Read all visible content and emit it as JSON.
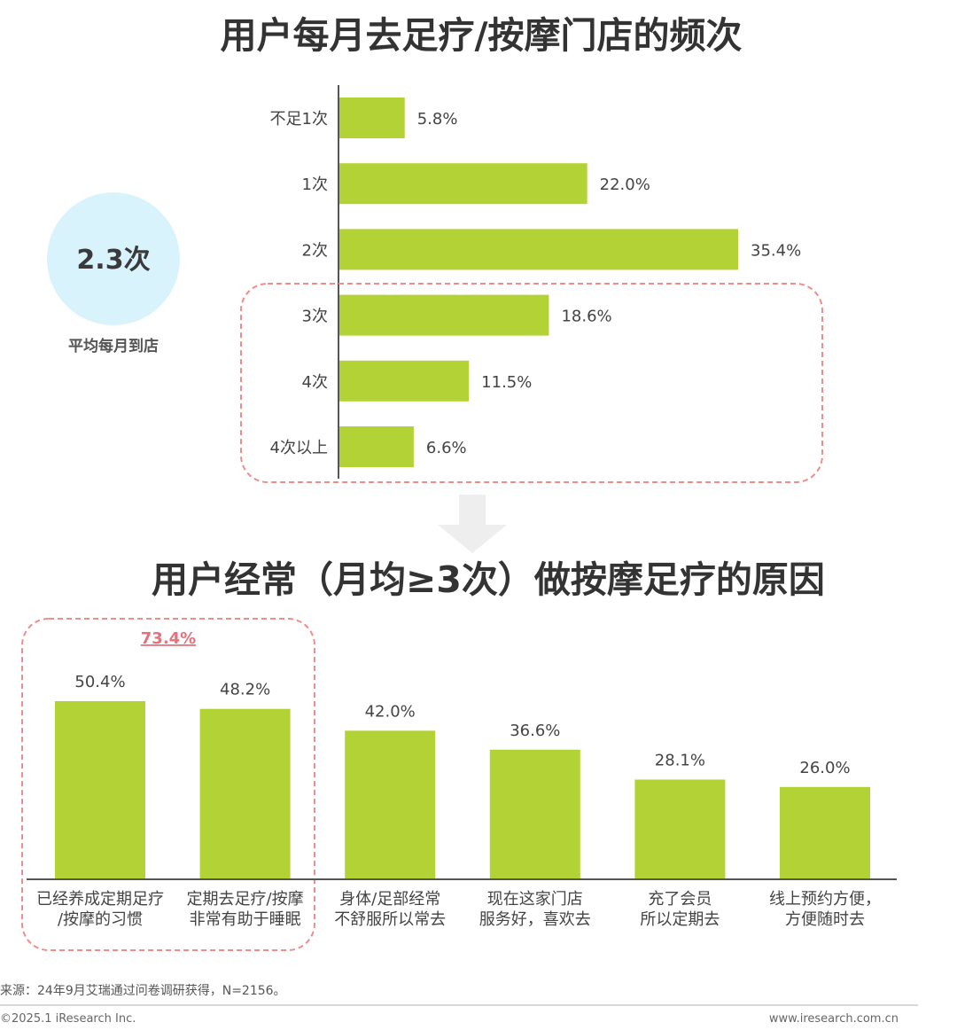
{
  "chart1": {
    "title": "用户每月去足疗/按摩门店的频次",
    "type": "bar",
    "orientation": "horizontal",
    "categories": [
      "不足1次",
      "1次",
      "2次",
      "3次",
      "4次",
      "4次以上"
    ],
    "values": [
      5.8,
      22.0,
      35.4,
      18.6,
      11.5,
      6.6
    ],
    "value_labels": [
      "5.8%",
      "22.0%",
      "35.4%",
      "18.6%",
      "11.5%",
      "6.6%"
    ],
    "highlighted_categories": [
      "3次",
      "4次",
      "4次以上"
    ],
    "bar_color": "#b2d235",
    "highlight_border_color": "#f08c8c"
  },
  "summary": {
    "value": "2.3次",
    "caption": "平均每月到店",
    "circle_color": "#d8f3fc"
  },
  "chart2": {
    "title": "用户经常（月均≥3次）做按摩足疗的原因",
    "type": "bar",
    "orientation": "vertical",
    "categories": [
      [
        "已经养成定期足疗",
        "/按摩的习惯"
      ],
      [
        "定期去足疗/按摩",
        "非常有助于睡眠"
      ],
      [
        "身体/足部经常",
        "不舒服所以常去"
      ],
      [
        "现在这家门店",
        "服务好，喜欢去"
      ],
      [
        "充了会员",
        "所以定期去"
      ],
      [
        "线上预约方便，",
        "方便随时去"
      ]
    ],
    "values": [
      50.4,
      48.2,
      42.0,
      36.6,
      28.1,
      26.0
    ],
    "value_labels": [
      "50.4%",
      "48.2%",
      "42.0%",
      "36.6%",
      "28.1%",
      "26.0%"
    ],
    "group_label": "73.4%",
    "group_label_color": "#e8707a",
    "bar_color": "#b2d235"
  },
  "footer": {
    "source": "来源：24年9月艾瑞通过问卷调研获得，N=2156。",
    "copyright": "©2025.1 iResearch Inc.",
    "website": "www.iresearch.com.cn"
  },
  "arrow_color": "#eeeeee"
}
